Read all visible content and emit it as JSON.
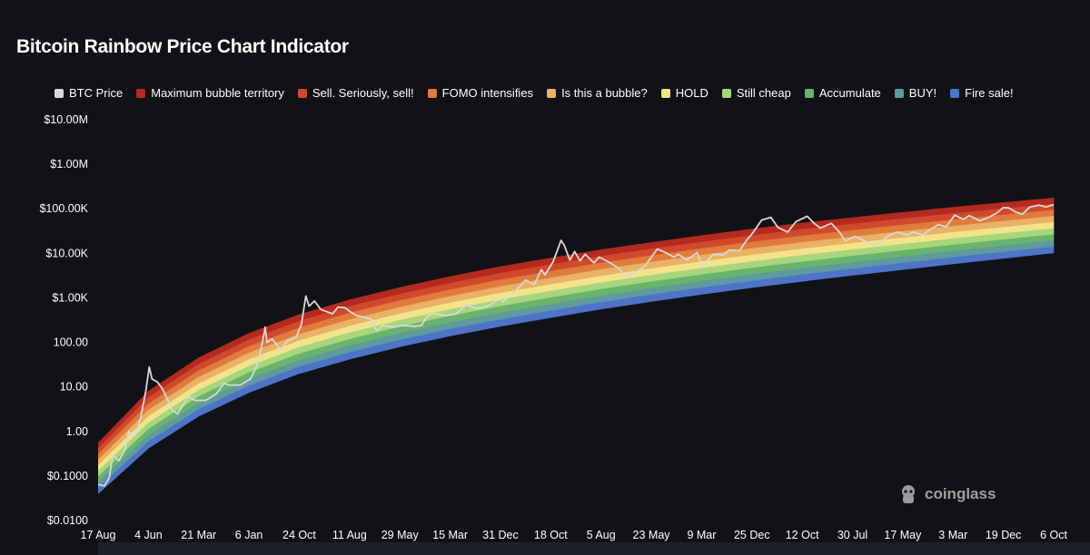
{
  "title": "Bitcoin Rainbow Price Chart Indicator",
  "watermark": "coinglass",
  "chart_data": {
    "type": "line",
    "title": "Bitcoin Rainbow Price Chart Indicator",
    "y_scale": "log",
    "ylim": [
      0.01,
      10000000
    ],
    "y_ticks": [
      {
        "value": 10000000,
        "label": "$10.00M"
      },
      {
        "value": 1000000,
        "label": "$1.00M"
      },
      {
        "value": 100000,
        "label": "$100.00K"
      },
      {
        "value": 10000,
        "label": "$10.00K"
      },
      {
        "value": 1000,
        "label": "$1.00K"
      },
      {
        "value": 100,
        "label": "100.00"
      },
      {
        "value": 10,
        "label": "10.00"
      },
      {
        "value": 1,
        "label": "1.00"
      },
      {
        "value": 0.1,
        "label": "$0.1000"
      },
      {
        "value": 0.01,
        "label": "$0.0100"
      }
    ],
    "x_range": [
      "2010-08-17",
      "2025-10-06"
    ],
    "x_ticks": [
      {
        "date": "2010-08-17",
        "label": "17 Aug"
      },
      {
        "date": "2011-06-04",
        "label": "4 Jun"
      },
      {
        "date": "2012-03-21",
        "label": "21 Mar"
      },
      {
        "date": "2013-01-06",
        "label": "6 Jan"
      },
      {
        "date": "2013-10-24",
        "label": "24 Oct"
      },
      {
        "date": "2014-08-11",
        "label": "11 Aug"
      },
      {
        "date": "2015-05-29",
        "label": "29 May"
      },
      {
        "date": "2016-03-15",
        "label": "15 Mar"
      },
      {
        "date": "2016-12-31",
        "label": "31 Dec"
      },
      {
        "date": "2017-10-18",
        "label": "18 Oct"
      },
      {
        "date": "2018-08-05",
        "label": "5 Aug"
      },
      {
        "date": "2019-05-23",
        "label": "23 May"
      },
      {
        "date": "2020-03-09",
        "label": "9 Mar"
      },
      {
        "date": "2020-12-25",
        "label": "25 Dec"
      },
      {
        "date": "2021-10-12",
        "label": "12 Oct"
      },
      {
        "date": "2022-07-30",
        "label": "30 Jul"
      },
      {
        "date": "2023-05-17",
        "label": "17 May"
      },
      {
        "date": "2024-03-03",
        "label": "3 Mar"
      },
      {
        "date": "2024-12-19",
        "label": "19 Dec"
      },
      {
        "date": "2025-10-06",
        "label": "6 Oct"
      }
    ],
    "legend_position": "top",
    "series": [
      {
        "name": "BTC Price",
        "color": "#d9d9d9",
        "role": "line",
        "points": [
          {
            "date": "2010-08-17",
            "value": 0.065
          },
          {
            "date": "2010-09-22",
            "value": 0.06
          },
          {
            "date": "2010-10-20",
            "value": 0.09
          },
          {
            "date": "2010-11-10",
            "value": 0.3
          },
          {
            "date": "2010-12-15",
            "value": 0.22
          },
          {
            "date": "2011-01-20",
            "value": 0.4
          },
          {
            "date": "2011-02-10",
            "value": 1.0
          },
          {
            "date": "2011-03-20",
            "value": 0.8
          },
          {
            "date": "2011-04-20",
            "value": 2.0
          },
          {
            "date": "2011-05-20",
            "value": 8.0
          },
          {
            "date": "2011-06-09",
            "value": 28
          },
          {
            "date": "2011-06-25",
            "value": 15
          },
          {
            "date": "2011-07-25",
            "value": 13
          },
          {
            "date": "2011-08-25",
            "value": 9
          },
          {
            "date": "2011-09-25",
            "value": 5
          },
          {
            "date": "2011-10-20",
            "value": 3
          },
          {
            "date": "2011-11-18",
            "value": 2.5
          },
          {
            "date": "2011-12-25",
            "value": 4.0
          },
          {
            "date": "2012-01-20",
            "value": 6.0
          },
          {
            "date": "2012-03-01",
            "value": 5.0
          },
          {
            "date": "2012-05-01",
            "value": 5.0
          },
          {
            "date": "2012-07-01",
            "value": 7.0
          },
          {
            "date": "2012-08-15",
            "value": 12
          },
          {
            "date": "2012-09-15",
            "value": 11
          },
          {
            "date": "2012-11-15",
            "value": 11
          },
          {
            "date": "2013-01-15",
            "value": 15
          },
          {
            "date": "2013-02-20",
            "value": 30
          },
          {
            "date": "2013-03-20",
            "value": 80
          },
          {
            "date": "2013-04-10",
            "value": 220
          },
          {
            "date": "2013-04-20",
            "value": 100
          },
          {
            "date": "2013-05-20",
            "value": 120
          },
          {
            "date": "2013-07-05",
            "value": 70
          },
          {
            "date": "2013-08-20",
            "value": 110
          },
          {
            "date": "2013-10-05",
            "value": 130
          },
          {
            "date": "2013-11-05",
            "value": 250
          },
          {
            "date": "2013-12-01",
            "value": 1100
          },
          {
            "date": "2013-12-20",
            "value": 650
          },
          {
            "date": "2014-01-20",
            "value": 850
          },
          {
            "date": "2014-02-25",
            "value": 550
          },
          {
            "date": "2014-03-25",
            "value": 500
          },
          {
            "date": "2014-05-05",
            "value": 440
          },
          {
            "date": "2014-06-05",
            "value": 620
          },
          {
            "date": "2014-07-15",
            "value": 600
          },
          {
            "date": "2014-08-18",
            "value": 480
          },
          {
            "date": "2014-09-20",
            "value": 400
          },
          {
            "date": "2014-10-20",
            "value": 380
          },
          {
            "date": "2014-12-15",
            "value": 330
          },
          {
            "date": "2015-01-14",
            "value": 180
          },
          {
            "date": "2015-02-20",
            "value": 240
          },
          {
            "date": "2015-04-15",
            "value": 220
          },
          {
            "date": "2015-06-15",
            "value": 240
          },
          {
            "date": "2015-08-20",
            "value": 230
          },
          {
            "date": "2015-10-01",
            "value": 240
          },
          {
            "date": "2015-11-05",
            "value": 400
          },
          {
            "date": "2015-12-20",
            "value": 440
          },
          {
            "date": "2016-02-15",
            "value": 400
          },
          {
            "date": "2016-04-15",
            "value": 430
          },
          {
            "date": "2016-06-17",
            "value": 700
          },
          {
            "date": "2016-08-15",
            "value": 580
          },
          {
            "date": "2016-10-15",
            "value": 640
          },
          {
            "date": "2016-12-31",
            "value": 960
          },
          {
            "date": "2017-01-15",
            "value": 820
          },
          {
            "date": "2017-03-10",
            "value": 1200
          },
          {
            "date": "2017-05-25",
            "value": 2500
          },
          {
            "date": "2017-07-15",
            "value": 2000
          },
          {
            "date": "2017-08-25",
            "value": 4300
          },
          {
            "date": "2017-09-15",
            "value": 3300
          },
          {
            "date": "2017-11-01",
            "value": 6500
          },
          {
            "date": "2017-12-17",
            "value": 19500
          },
          {
            "date": "2018-01-05",
            "value": 15000
          },
          {
            "date": "2018-02-06",
            "value": 7000
          },
          {
            "date": "2018-03-05",
            "value": 11000
          },
          {
            "date": "2018-04-05",
            "value": 6800
          },
          {
            "date": "2018-05-05",
            "value": 9500
          },
          {
            "date": "2018-06-25",
            "value": 6100
          },
          {
            "date": "2018-07-25",
            "value": 8200
          },
          {
            "date": "2018-09-15",
            "value": 6500
          },
          {
            "date": "2018-11-20",
            "value": 4500
          },
          {
            "date": "2018-12-15",
            "value": 3300
          },
          {
            "date": "2019-02-15",
            "value": 3600
          },
          {
            "date": "2019-04-15",
            "value": 5100
          },
          {
            "date": "2019-06-26",
            "value": 12500
          },
          {
            "date": "2019-08-15",
            "value": 10300
          },
          {
            "date": "2019-09-30",
            "value": 8200
          },
          {
            "date": "2019-10-26",
            "value": 9500
          },
          {
            "date": "2019-12-15",
            "value": 7100
          },
          {
            "date": "2020-02-12",
            "value": 10300
          },
          {
            "date": "2020-03-13",
            "value": 5000
          },
          {
            "date": "2020-04-15",
            "value": 7000
          },
          {
            "date": "2020-05-15",
            "value": 9500
          },
          {
            "date": "2020-07-15",
            "value": 9200
          },
          {
            "date": "2020-08-15",
            "value": 11800
          },
          {
            "date": "2020-10-15",
            "value": 11500
          },
          {
            "date": "2020-11-20",
            "value": 18500
          },
          {
            "date": "2020-12-31",
            "value": 29000
          },
          {
            "date": "2021-02-20",
            "value": 56000
          },
          {
            "date": "2021-04-14",
            "value": 64000
          },
          {
            "date": "2021-05-25",
            "value": 38000
          },
          {
            "date": "2021-07-20",
            "value": 30000
          },
          {
            "date": "2021-09-05",
            "value": 51000
          },
          {
            "date": "2021-11-10",
            "value": 68000
          },
          {
            "date": "2021-12-20",
            "value": 47000
          },
          {
            "date": "2022-01-25",
            "value": 37000
          },
          {
            "date": "2022-03-30",
            "value": 47000
          },
          {
            "date": "2022-05-15",
            "value": 30000
          },
          {
            "date": "2022-06-18",
            "value": 19000
          },
          {
            "date": "2022-08-15",
            "value": 24000
          },
          {
            "date": "2022-09-30",
            "value": 19500
          },
          {
            "date": "2022-11-21",
            "value": 15800
          },
          {
            "date": "2022-12-31",
            "value": 16500
          },
          {
            "date": "2023-02-15",
            "value": 24000
          },
          {
            "date": "2023-04-15",
            "value": 30000
          },
          {
            "date": "2023-06-15",
            "value": 25500
          },
          {
            "date": "2023-07-15",
            "value": 30000
          },
          {
            "date": "2023-09-10",
            "value": 25800
          },
          {
            "date": "2023-10-25",
            "value": 34500
          },
          {
            "date": "2023-12-10",
            "value": 44000
          },
          {
            "date": "2024-01-22",
            "value": 39500
          },
          {
            "date": "2024-03-13",
            "value": 72000
          },
          {
            "date": "2024-05-01",
            "value": 58000
          },
          {
            "date": "2024-06-05",
            "value": 70000
          },
          {
            "date": "2024-08-05",
            "value": 54000
          },
          {
            "date": "2024-09-25",
            "value": 64000
          },
          {
            "date": "2024-11-10",
            "value": 80000
          },
          {
            "date": "2024-12-17",
            "value": 106000
          },
          {
            "date": "2025-01-20",
            "value": 105000
          },
          {
            "date": "2025-02-28",
            "value": 84000
          },
          {
            "date": "2025-04-08",
            "value": 76000
          },
          {
            "date": "2025-05-22",
            "value": 110000
          },
          {
            "date": "2025-07-14",
            "value": 121000
          },
          {
            "date": "2025-08-25",
            "value": 110000
          },
          {
            "date": "2025-10-06",
            "value": 124000
          }
        ]
      },
      {
        "name": "Maximum bubble territory",
        "color": "#b52a1e",
        "role": "band"
      },
      {
        "name": "Sell. Seriously, sell!",
        "color": "#cf4a2c",
        "role": "band"
      },
      {
        "name": "FOMO intensifies",
        "color": "#e07b3c",
        "role": "band"
      },
      {
        "name": "Is this a bubble?",
        "color": "#e9b264",
        "role": "band"
      },
      {
        "name": "HOLD",
        "color": "#f3e48a",
        "role": "band"
      },
      {
        "name": "Still cheap",
        "color": "#a6d77c",
        "role": "band"
      },
      {
        "name": "Accumulate",
        "color": "#69b36c",
        "role": "band"
      },
      {
        "name": "BUY!",
        "color": "#5e9a9e",
        "role": "band"
      },
      {
        "name": "Fire sale!",
        "color": "#4d74c6",
        "role": "band"
      }
    ],
    "rainbow_bands": {
      "x": [
        "2010-08-17",
        "2011-06-04",
        "2012-03-21",
        "2013-01-06",
        "2013-10-24",
        "2014-08-11",
        "2015-05-29",
        "2016-03-15",
        "2016-12-31",
        "2017-10-18",
        "2018-08-05",
        "2019-05-23",
        "2020-03-09",
        "2020-12-25",
        "2021-10-12",
        "2022-07-30",
        "2023-05-17",
        "2024-03-03",
        "2024-12-19",
        "2025-10-06"
      ],
      "upper": [
        0.55,
        8,
        45,
        160,
        420,
        900,
        1700,
        3000,
        5000,
        7800,
        12000,
        17500,
        25000,
        35000,
        48000,
        63000,
        83000,
        108000,
        138000,
        175000
      ],
      "lower": [
        0.04,
        0.42,
        2.2,
        7.5,
        20,
        42,
        80,
        140,
        230,
        360,
        560,
        830,
        1200,
        1700,
        2350,
        3200,
        4300,
        5800,
        7700,
        10200
      ]
    }
  }
}
